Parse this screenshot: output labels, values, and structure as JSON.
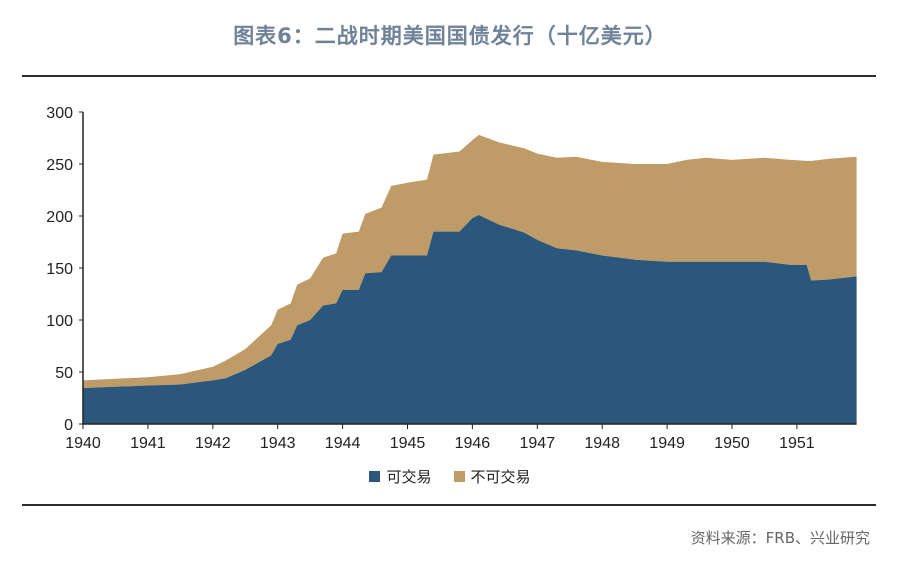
{
  "title": "图表6：二战时期美国国债发行（十亿美元）",
  "source": "资料来源：FRB、兴业研究",
  "chart_data": {
    "type": "area",
    "stacked": true,
    "title": "图表6：二战时期美国国债发行（十亿美元）",
    "xlabel": "",
    "ylabel": "",
    "xlim": [
      1940,
      1951.92
    ],
    "ylim": [
      0,
      300
    ],
    "yticks": [
      0,
      50,
      100,
      150,
      200,
      250,
      300
    ],
    "xticks": [
      1940,
      1941,
      1942,
      1943,
      1944,
      1945,
      1946,
      1947,
      1948,
      1949,
      1950,
      1951
    ],
    "legend_position": "bottom",
    "colors": {
      "marketable": "#2b577d",
      "nonmarketable": "#bf9b68"
    },
    "x": [
      1940.0,
      1941.0,
      1941.5,
      1942.0,
      1942.2,
      1942.5,
      1942.9,
      1943.0,
      1943.2,
      1943.3,
      1943.5,
      1943.7,
      1943.9,
      1944.0,
      1944.25,
      1944.35,
      1944.6,
      1944.75,
      1945.0,
      1945.3,
      1945.4,
      1945.8,
      1946.0,
      1946.1,
      1946.4,
      1946.8,
      1947.0,
      1947.3,
      1947.6,
      1948.0,
      1948.5,
      1949.0,
      1949.3,
      1949.6,
      1950.0,
      1950.5,
      1950.9,
      1951.15,
      1951.22,
      1951.5,
      1951.92
    ],
    "series": [
      {
        "name": "可交易",
        "values": [
          34.6,
          37,
          38,
          42,
          44,
          52,
          66,
          77,
          81,
          95,
          100,
          114,
          116,
          129,
          129,
          145,
          146,
          162,
          162,
          162,
          185,
          185,
          198,
          201,
          192,
          184,
          177,
          169,
          167,
          162,
          158,
          156,
          156,
          156,
          156,
          156,
          153,
          153,
          138,
          139,
          142
        ]
      },
      {
        "name": "不可交易",
        "values": [
          7.4,
          8,
          10,
          13,
          17,
          20,
          29,
          33,
          35,
          39,
          40,
          46,
          48,
          54,
          56,
          57,
          62,
          67,
          70,
          73,
          74,
          77,
          75,
          77,
          79,
          81,
          83,
          87,
          90,
          90,
          92,
          94,
          98,
          100,
          98,
          100,
          101,
          100,
          115,
          116,
          115
        ]
      }
    ]
  }
}
